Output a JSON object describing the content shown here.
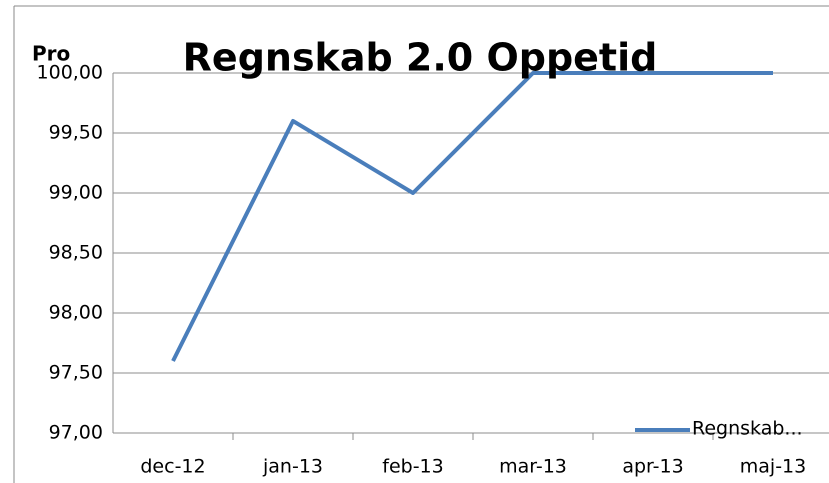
{
  "chart_data": {
    "type": "line",
    "title": "Regnskab 2.0 Oppetid",
    "y_label": "Pro",
    "categories": [
      "dec-12",
      "jan-13",
      "feb-13",
      "mar-13",
      "apr-13",
      "maj-13"
    ],
    "series": [
      {
        "name": "Regnskab...",
        "color": "#4a7ebb",
        "values": [
          97.6,
          99.6,
          99.0,
          100,
          100,
          100
        ]
      }
    ],
    "ylim": [
      97,
      100
    ],
    "yticks": [
      {
        "value": 97,
        "label": "97,00"
      },
      {
        "value": 97.5,
        "label": "97,50"
      },
      {
        "value": 98,
        "label": "98,00"
      },
      {
        "value": 98.5,
        "label": "98,50"
      },
      {
        "value": 99,
        "label": "99,00"
      },
      {
        "value": 99.5,
        "label": "99,50"
      },
      {
        "value": 100,
        "label": "100,00"
      }
    ],
    "grid": true,
    "legend": "bottom-right"
  }
}
